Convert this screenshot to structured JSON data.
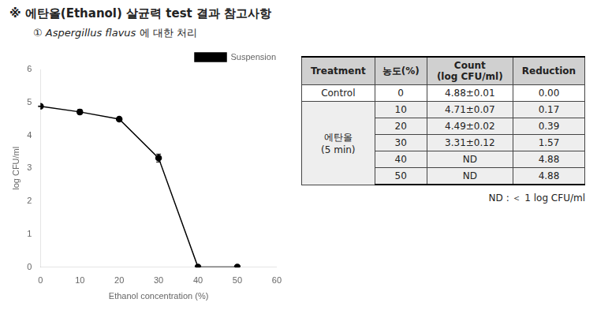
{
  "chart_data": {
    "type": "line",
    "title": "※ 에탄올(Ethanol) 살균력 test 결과 참고사항",
    "subtitle": {
      "prefix": "① ",
      "italic": "Aspergillus flavus",
      "text": "에 대한 처리"
    },
    "x": [
      0,
      10,
      20,
      30,
      40,
      50
    ],
    "series": [
      {
        "name": "Suspension",
        "color": "#000000",
        "marker": "circle",
        "line_style": "solid",
        "values": [
          4.88,
          4.71,
          4.49,
          3.31,
          0.0,
          0.0
        ],
        "errors": [
          0.01,
          0.07,
          0.02,
          0.12,
          0.0,
          0.0
        ]
      }
    ],
    "xlabel": "Ethanol concentration (%)",
    "ylabel": "log CFU/ml",
    "xlim": [
      0,
      60
    ],
    "ylim": [
      0,
      6
    ],
    "xticks": [
      0,
      10,
      20,
      30,
      40,
      50,
      60
    ],
    "yticks": [
      0,
      1,
      2,
      3,
      4,
      5,
      6
    ],
    "grid": false,
    "legend": "upper right",
    "table": {
      "header": [
        "Treatment",
        "농도(%)",
        "Count\n(log CFU/ml)",
        "Reduction"
      ],
      "groups": [
        {
          "label": "Control",
          "rows": [
            [
              "0",
              "4.88±0.01",
              "0.00"
            ]
          ]
        },
        {
          "label": "에탄올\n(5 min)",
          "rows": [
            [
              "10",
              "4.71±0.07",
              "0.17"
            ],
            [
              "20",
              "4.49±0.02",
              "0.39"
            ],
            [
              "30",
              "3.31±0.12",
              "1.57"
            ],
            [
              "40",
              "ND",
              "4.88"
            ],
            [
              "50",
              "ND",
              "4.88"
            ]
          ]
        }
      ]
    },
    "note": "ND : ＜ 1 log CFU/ml"
  }
}
